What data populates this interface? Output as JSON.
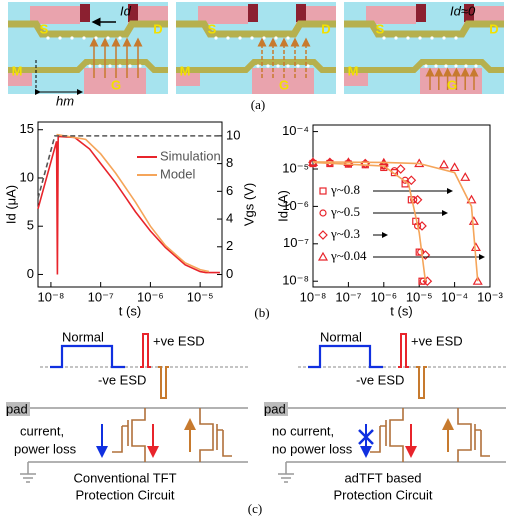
{
  "panel_a": {
    "devices": [
      {
        "source": "S",
        "drain": "D",
        "current": "Id",
        "middle": "M",
        "gate": "G",
        "height": "hm"
      },
      {
        "source": "S",
        "drain": "D",
        "middle": "M",
        "gate": "G"
      },
      {
        "source": "S",
        "drain": "D",
        "current": "Id≈0",
        "middle": "M",
        "gate": "G"
      }
    ],
    "caption": "(a)"
  },
  "chart_data": [
    {
      "type": "line",
      "x_scale": "log",
      "xlim": [
        5.5e-09,
        2.75e-05
      ],
      "xticks": [
        {
          "value": 1e-08,
          "label": "10⁻⁸"
        },
        {
          "value": 1e-07,
          "label": "10⁻⁷"
        },
        {
          "value": 1e-06,
          "label": "10⁻⁶"
        },
        {
          "value": 1e-05,
          "label": "10⁻⁵"
        }
      ],
      "xlabel": "t (s)",
      "ylabel": "Id (μA)",
      "ylim": [
        -1.3,
        15.8
      ],
      "yticks": [
        0,
        5,
        10,
        15
      ],
      "y2label": "Vgs (V)",
      "y2lim": [
        -0.9,
        11
      ],
      "y2ticks": [
        0,
        2,
        4,
        6,
        8,
        10
      ],
      "legend": "upper right",
      "series": [
        {
          "name": "Simulation",
          "color": "#e8242b",
          "x": [
            5.5e-09,
            1.3e-08,
            1.35e-08,
            1.4e-08,
            3e-08,
            6e-08,
            1e-07,
            2e-07,
            5e-07,
            1e-06,
            2e-06,
            5e-06,
            1e-05,
            1.3e-05,
            2.5e-05
          ],
          "values": [
            6.8,
            13.8,
            0,
            14.3,
            14.2,
            13,
            11.5,
            9.5,
            6.5,
            4.5,
            2.8,
            1,
            0.3,
            0.2,
            0.2
          ]
        },
        {
          "name": "Model",
          "color": "#f5a55a",
          "x": [
            1.3e-08,
            5e-08,
            1e-07,
            2e-07,
            5e-07,
            1e-06,
            2e-06,
            5e-06,
            1e-05,
            1.5e-05
          ],
          "values": [
            14.5,
            14,
            12.5,
            10.5,
            7.5,
            5,
            3,
            1.2,
            0.5,
            0.3
          ]
        },
        {
          "color": "#555555",
          "dash": true,
          "axis": "y2",
          "x": [
            5.5e-09,
            1.2e-08,
            2.5e-05
          ],
          "values": [
            5.5,
            10,
            10
          ]
        }
      ]
    },
    {
      "type": "scatter",
      "x_scale": "log",
      "y_scale": "log",
      "xlim": [
        1e-08,
        0.001
      ],
      "xticks": [
        {
          "value": 1e-08,
          "label": "10⁻⁸"
        },
        {
          "value": 1e-07,
          "label": "10⁻⁷"
        },
        {
          "value": 1e-06,
          "label": "10⁻⁶"
        },
        {
          "value": 1e-05,
          "label": "10⁻⁵"
        },
        {
          "value": 0.0001,
          "label": "10⁻⁴"
        },
        {
          "value": 0.001,
          "label": "10⁻³"
        }
      ],
      "ylim": [
        7e-09,
        0.00015
      ],
      "yticks": [
        {
          "value": 1e-08,
          "label": "10⁻⁸"
        },
        {
          "value": 1e-07,
          "label": "10⁻⁷"
        },
        {
          "value": 1e-06,
          "label": "10⁻⁶"
        },
        {
          "value": 1e-05,
          "label": "10⁻⁵"
        },
        {
          "value": 0.0001,
          "label": "10⁻⁴"
        }
      ],
      "xlabel": "t (s)",
      "ylabel": "Id (A)",
      "series": [
        {
          "name": "γ~0.8",
          "marker": "square",
          "color": "#e8242b",
          "x": [
            1e-08,
            3e-08,
            1e-07,
            3e-07,
            1e-06,
            2e-06,
            4e-06,
            6e-06,
            8e-06,
            1e-05,
            1.2e-05
          ],
          "values": [
            1.4e-05,
            1.4e-05,
            1.35e-05,
            1.3e-05,
            1.1e-05,
            8e-06,
            4e-06,
            1.5e-06,
            4e-07,
            6e-08,
            1e-08
          ]
        },
        {
          "name": "γ~0.5",
          "marker": "circle",
          "color": "#e8242b",
          "x": [
            1e-08,
            3e-08,
            1e-07,
            3e-07,
            1e-06,
            2e-06,
            4e-06,
            7e-06,
            9e-06,
            1.1e-05,
            1.3e-05
          ],
          "values": [
            1.45e-05,
            1.45e-05,
            1.4e-05,
            1.35e-05,
            1.2e-05,
            9e-06,
            5e-06,
            1.5e-06,
            3e-07,
            6e-08,
            1e-08
          ]
        },
        {
          "name": "γ~0.3",
          "marker": "diamond",
          "color": "#e8242b",
          "x": [
            1e-08,
            3e-08,
            1e-07,
            3e-07,
            1e-06,
            3e-06,
            6e-06,
            9e-06,
            1.2e-05,
            1.5e-05,
            1.7e-05
          ],
          "values": [
            1.5e-05,
            1.5e-05,
            1.45e-05,
            1.4e-05,
            1.3e-05,
            1e-05,
            5e-06,
            1.5e-06,
            3e-07,
            5e-08,
            1e-08
          ]
        },
        {
          "name": "γ~0.04",
          "marker": "triangle",
          "color": "#e8242b",
          "x": [
            1e-08,
            1e-07,
            1e-06,
            1e-05,
            5e-05,
            0.0001,
            0.0002,
            0.0003,
            0.00035,
            0.0004,
            0.00045
          ],
          "values": [
            1.5e-05,
            1.5e-05,
            1.45e-05,
            1.4e-05,
            1.3e-05,
            1.1e-05,
            6e-06,
            1.5e-06,
            4e-07,
            8e-08,
            1e-08
          ]
        },
        {
          "type": "line",
          "color": "#f5a55a",
          "x": [
            1e-08,
            1e-06,
            5e-06,
            1e-05,
            1.5e-05
          ],
          "values": [
            1.5e-05,
            1.2e-05,
            4e-06,
            2e-07,
            1e-08
          ]
        },
        {
          "type": "line",
          "color": "#f5a55a",
          "x": [
            1e-08,
            1e-06,
            1e-05,
            0.0001,
            0.0003,
            0.00045
          ],
          "values": [
            1.55e-05,
            1.5e-05,
            1.4e-05,
            8e-06,
            1e-06,
            1e-08
          ]
        }
      ]
    }
  ],
  "caption_b": "(b)",
  "panel_c": {
    "left": {
      "pulse": "Normal",
      "positive": "+ve ESD",
      "negative": "-ve ESD",
      "pad": "pad",
      "note": [
        "current,",
        "power loss"
      ],
      "title": [
        "Conventional TFT",
        "Protection Circuit"
      ]
    },
    "right": {
      "pulse": "Normal",
      "positive": "+ve ESD",
      "negative": "-ve ESD",
      "pad": "pad",
      "note": [
        "no current,",
        "no power loss"
      ],
      "title": [
        "adTFT based",
        "Protection Circuit"
      ]
    },
    "caption": "(c)"
  }
}
